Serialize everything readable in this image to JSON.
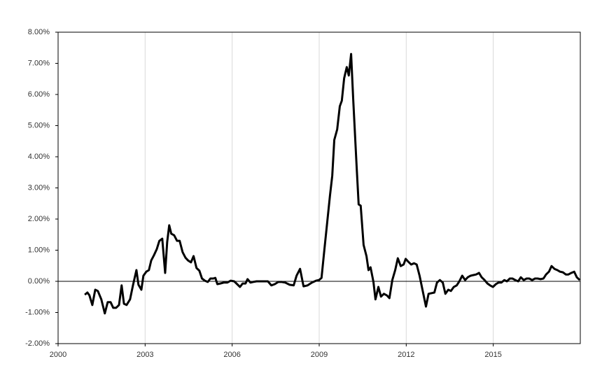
{
  "chart_data": {
    "type": "line",
    "color": "#000000",
    "grid": "x",
    "zero_line": true,
    "xlim": [
      2000,
      2018
    ],
    "xticks": [
      2000,
      2003,
      2006,
      2009,
      2012,
      2015
    ],
    "ylim": [
      -2,
      8
    ],
    "yticks": [
      {
        "value": -2,
        "label": "-2.00%"
      },
      {
        "value": -1,
        "label": "-1.00%"
      },
      {
        "value": 0,
        "label": "0.00%"
      },
      {
        "value": 1,
        "label": "1.00%"
      },
      {
        "value": 2,
        "label": "2.00%"
      },
      {
        "value": 3,
        "label": "3.00%"
      },
      {
        "value": 4,
        "label": "4.00%"
      },
      {
        "value": 5,
        "label": "5.00%"
      },
      {
        "value": 6,
        "label": "6.00%"
      },
      {
        "value": 7,
        "label": "7.00%"
      },
      {
        "value": 8,
        "label": "8.00%"
      }
    ],
    "x": [
      2000.92,
      2001.01,
      2001.08,
      2001.18,
      2001.28,
      2001.37,
      2001.49,
      2001.61,
      2001.71,
      2001.81,
      2001.9,
      2002.0,
      2002.1,
      2002.19,
      2002.27,
      2002.36,
      2002.48,
      2002.58,
      2002.7,
      2002.77,
      2002.87,
      2002.94,
      2003.04,
      2003.13,
      2003.21,
      2003.3,
      2003.4,
      2003.49,
      2003.59,
      2003.69,
      2003.76,
      2003.83,
      2003.9,
      2004.0,
      2004.1,
      2004.19,
      2004.29,
      2004.39,
      2004.48,
      2004.58,
      2004.67,
      2004.77,
      2004.87,
      2004.96,
      2005.06,
      2005.16,
      2005.25,
      2005.35,
      2005.42,
      2005.49,
      2005.59,
      2005.71,
      2005.83,
      2005.95,
      2006.07,
      2006.17,
      2006.27,
      2006.36,
      2006.46,
      2006.53,
      2006.63,
      2006.72,
      2006.84,
      2006.96,
      2007.11,
      2007.23,
      2007.35,
      2007.47,
      2007.59,
      2007.71,
      2007.83,
      2007.98,
      2008.12,
      2008.22,
      2008.34,
      2008.46,
      2008.6,
      2008.75,
      2008.89,
      2008.99,
      2009.08,
      2009.18,
      2009.28,
      2009.37,
      2009.45,
      2009.52,
      2009.62,
      2009.71,
      2009.78,
      2009.86,
      2009.95,
      2010.02,
      2010.1,
      2010.17,
      2010.29,
      2010.36,
      2010.43,
      2010.53,
      2010.63,
      2010.7,
      2010.77,
      2010.87,
      2010.94,
      2011.04,
      2011.13,
      2011.23,
      2011.33,
      2011.42,
      2011.52,
      2011.62,
      2011.71,
      2011.81,
      2011.91,
      2011.98,
      2012.07,
      2012.17,
      2012.27,
      2012.36,
      2012.46,
      2012.56,
      2012.68,
      2012.77,
      2012.87,
      2012.97,
      2013.06,
      2013.16,
      2013.26,
      2013.35,
      2013.45,
      2013.54,
      2013.64,
      2013.74,
      2013.83,
      2013.93,
      2014.03,
      2014.12,
      2014.22,
      2014.31,
      2014.41,
      2014.51,
      2014.6,
      2014.7,
      2014.8,
      2014.89,
      2014.99,
      2015.09,
      2015.18,
      2015.28,
      2015.38,
      2015.47,
      2015.57,
      2015.66,
      2015.76,
      2015.86,
      2015.95,
      2016.05,
      2016.15,
      2016.24,
      2016.34,
      2016.44,
      2016.53,
      2016.63,
      2016.73,
      2016.82,
      2016.92,
      2017.01,
      2017.11,
      2017.21,
      2017.3,
      2017.4,
      2017.5,
      2017.59,
      2017.69,
      2017.79,
      2017.88,
      2017.98
    ],
    "values": [
      -0.43,
      -0.36,
      -0.45,
      -0.76,
      -0.27,
      -0.31,
      -0.58,
      -1.03,
      -0.67,
      -0.67,
      -0.85,
      -0.85,
      -0.76,
      -0.13,
      -0.72,
      -0.76,
      -0.58,
      -0.13,
      0.36,
      -0.11,
      -0.27,
      0.18,
      0.31,
      0.36,
      0.67,
      0.83,
      1.03,
      1.3,
      1.37,
      0.27,
      1.26,
      1.8,
      1.53,
      1.48,
      1.3,
      1.3,
      0.94,
      0.76,
      0.67,
      0.61,
      0.81,
      0.43,
      0.34,
      0.09,
      0.02,
      -0.02,
      0.09,
      0.09,
      0.11,
      -0.09,
      -0.07,
      -0.04,
      -0.04,
      0.02,
      0,
      -0.09,
      -0.18,
      -0.07,
      -0.07,
      0.07,
      -0.04,
      -0.02,
      0,
      0,
      0,
      0,
      -0.13,
      -0.09,
      -0.02,
      -0.02,
      -0.04,
      -0.11,
      -0.13,
      0.18,
      0.4,
      -0.16,
      -0.13,
      -0.04,
      0.02,
      0.04,
      0.11,
      1.03,
      1.93,
      2.74,
      3.39,
      4.54,
      4.88,
      5.62,
      5.8,
      6.52,
      6.88,
      6.61,
      7.3,
      5.89,
      3.69,
      2.47,
      2.43,
      1.17,
      0.81,
      0.36,
      0.45,
      -0.02,
      -0.58,
      -0.18,
      -0.49,
      -0.4,
      -0.45,
      -0.54,
      0.04,
      0.36,
      0.74,
      0.49,
      0.54,
      0.72,
      0.63,
      0.54,
      0.58,
      0.54,
      0.18,
      -0.27,
      -0.81,
      -0.4,
      -0.38,
      -0.36,
      -0.04,
      0.04,
      -0.04,
      -0.4,
      -0.27,
      -0.31,
      -0.18,
      -0.13,
      0,
      0.18,
      0.04,
      0.13,
      0.18,
      0.2,
      0.22,
      0.27,
      0.13,
      0.04,
      -0.07,
      -0.13,
      -0.18,
      -0.09,
      -0.04,
      -0.04,
      0.04,
      0,
      0.09,
      0.09,
      0.04,
      0,
      0.13,
      0.04,
      0.09,
      0.09,
      0.04,
      0.09,
      0.09,
      0.07,
      0.09,
      0.22,
      0.31,
      0.49,
      0.4,
      0.36,
      0.31,
      0.29,
      0.22,
      0.22,
      0.27,
      0.31,
      0.13,
      0.04
    ]
  }
}
